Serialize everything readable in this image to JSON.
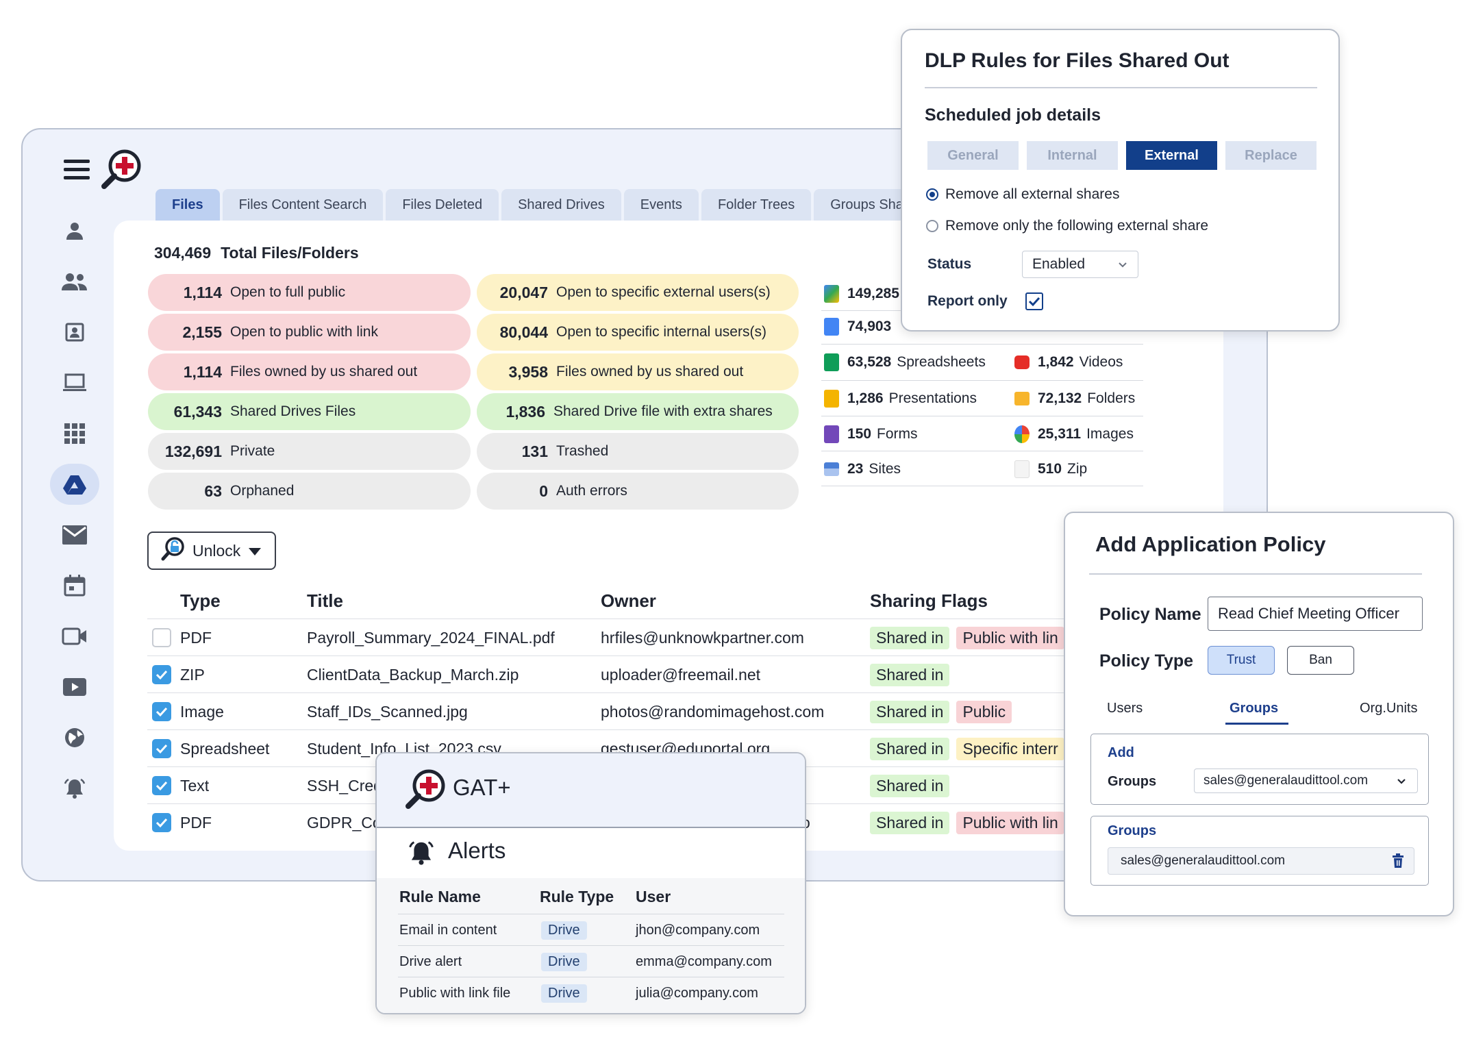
{
  "tabs": [
    "Files",
    "Files Content Search",
    "Files Deleted",
    "Shared Drives",
    "Events",
    "Folder Trees",
    "Groups Shari"
  ],
  "summary": {
    "total_value": "304,469",
    "total_label": "Total Files/Folders"
  },
  "stats_left": [
    {
      "value": "1,114",
      "label": "Open to full public"
    },
    {
      "value": "2,155",
      "label": "Open to public with link"
    },
    {
      "value": "1,114",
      "label": "Files owned by us shared out"
    },
    {
      "value": "61,343",
      "label": "Shared Drives Files"
    },
    {
      "value": "132,691",
      "label": "Private"
    },
    {
      "value": "63",
      "label": "Orphaned"
    }
  ],
  "stats_right": [
    {
      "value": "20,047",
      "label": "Open to specific external users(s)"
    },
    {
      "value": "80,044",
      "label": "Open to specific internal users(s)"
    },
    {
      "value": "3,958",
      "label": "Files owned by us shared out"
    },
    {
      "value": "1,836",
      "label": "Shared Drive file with extra shares"
    },
    {
      "value": "131",
      "label": "Trashed"
    },
    {
      "value": "0",
      "label": "Auth errors"
    }
  ],
  "file_types": [
    {
      "value": "149,285",
      "label": ""
    },
    {
      "value": "74,903",
      "label": ""
    },
    {
      "value": "63,528",
      "label": "Spreadsheets"
    },
    {
      "value": "1,842",
      "label": "Videos"
    },
    {
      "value": "1,286",
      "label": "Presentations"
    },
    {
      "value": "72,132",
      "label": "Folders"
    },
    {
      "value": "150",
      "label": "Forms"
    },
    {
      "value": "25,311",
      "label": "Images"
    },
    {
      "value": "23",
      "label": "Sites"
    },
    {
      "value": "510",
      "label": "Zip"
    }
  ],
  "unlock_label": "Unlock",
  "table": {
    "headers": [
      "Type",
      "Title",
      "Owner",
      "Sharing Flags"
    ],
    "rows": [
      {
        "type": "PDF",
        "title": "Payroll_Summary_2024_FINAL.pdf",
        "owner": "hrfiles@unknowkpartner.com",
        "flag1": "Shared in",
        "flag2": "Public with lin",
        "checked": false
      },
      {
        "type": "ZIP",
        "title": "ClientData_Backup_March.zip",
        "owner": "uploader@freemail.net",
        "flag1": "Shared in",
        "flag2": "",
        "checked": true
      },
      {
        "type": "Image",
        "title": "Staff_IDs_Scanned.jpg",
        "owner": "photos@randomimagehost.com",
        "flag1": "Shared in",
        "flag2": "Public",
        "checked": true
      },
      {
        "type": "Spreadsheet",
        "title": "Student_Info_List_2023.csv",
        "owner": "gestuser@eduportal.org",
        "flag1": "Shared in",
        "flag2": "Specific interr",
        "checked": true
      },
      {
        "type": "Text",
        "title": "SSH_Cred",
        "owner": "",
        "flag1": "Shared in",
        "flag2": "",
        "checked": true
      },
      {
        "type": "PDF",
        "title": "GDPR_Co",
        "owner": "o",
        "flag1": "Shared in",
        "flag2": "Public with lin",
        "checked": true
      }
    ]
  },
  "dlp": {
    "title": "DLP Rules for Files Shared Out",
    "subtitle": "Scheduled job details",
    "segments": [
      "General",
      "Internal",
      "External",
      "Replace"
    ],
    "radio1": "Remove all external shares",
    "radio2": "Remove only the following external share",
    "status_label": "Status",
    "status_value": "Enabled",
    "report_label": "Report only"
  },
  "policy": {
    "title": "Add Application Policy",
    "name_label": "Policy Name",
    "name_value": "Read Chief Meeting Officer",
    "type_label": "Policy Type",
    "trust": "Trust",
    "ban": "Ban",
    "tabs": [
      "Users",
      "Groups",
      "Org.Units"
    ],
    "add_label": "Add",
    "groups_label": "Groups",
    "groups_select": "sales@generalaudittool.com",
    "groups_box_label": "Groups",
    "groups_value": "sales@generalaudittool.com"
  },
  "gat": {
    "brand": "GAT+",
    "alerts_title": "Alerts",
    "headers": [
      "Rule Name",
      "Rule Type",
      "User"
    ],
    "rows": [
      {
        "rule": "Email in content",
        "type": "Drive",
        "user": "jhon@company.com"
      },
      {
        "rule": "Drive alert",
        "type": "Drive",
        "user": "emma@company.com"
      },
      {
        "rule": "Public with link file",
        "type": "Drive",
        "user": "julia@company.com"
      }
    ]
  },
  "colors": {
    "accent": "#123f8a",
    "pill_red": "#f9d6d9",
    "pill_yellow": "#fdf2c7",
    "pill_green": "#d9f4cf",
    "pill_gray": "#ececec",
    "checkbox": "#3a9ae2"
  }
}
